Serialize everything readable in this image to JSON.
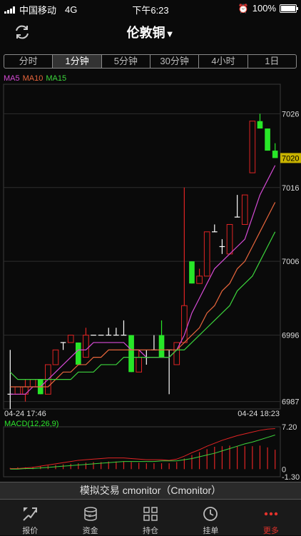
{
  "status_bar": {
    "carrier": "中国移动",
    "network": "4G",
    "time": "下午6:23",
    "battery": "100%"
  },
  "header": {
    "title": "伦敦铜",
    "refresh_icon": "refresh-icon",
    "dropdown_icon": "caret-down-icon"
  },
  "tabs": [
    {
      "label": "分时",
      "active": false
    },
    {
      "label": "1分钟",
      "active": true
    },
    {
      "label": "5分钟",
      "active": false
    },
    {
      "label": "30分钟",
      "active": false
    },
    {
      "label": "4小时",
      "active": false
    },
    {
      "label": "1日",
      "active": false
    }
  ],
  "legend": [
    {
      "label": "MA5",
      "color": "#d64bd6"
    },
    {
      "label": "MA10",
      "color": "#e8663c"
    },
    {
      "label": "MA15",
      "color": "#3cd43c"
    }
  ],
  "chart_data": [
    {
      "type": "candlestick",
      "price_ticks": [
        "7026",
        "7016",
        "7006",
        "6996",
        "6987"
      ],
      "current_price": "7020",
      "time_labels": [
        "04-24 17:46",
        "04-24 18:23"
      ],
      "ylim": [
        6986,
        7030
      ],
      "candles": [
        {
          "o": 6988,
          "c": 6988,
          "h": 6994,
          "l": 6986,
          "color": "white"
        },
        {
          "o": 6989,
          "c": 6988,
          "h": 6989,
          "l": 6988,
          "color": "red"
        },
        {
          "o": 6989,
          "c": 6988,
          "h": 6990,
          "l": 6987,
          "color": "red"
        },
        {
          "o": 6990,
          "c": 6989,
          "h": 6990,
          "l": 6989,
          "color": "red"
        },
        {
          "o": 6988,
          "c": 6990,
          "h": 6990,
          "l": 6988,
          "color": "green"
        },
        {
          "o": 6992,
          "c": 6988,
          "h": 6992,
          "l": 6988,
          "color": "red"
        },
        {
          "o": 6994,
          "c": 6992,
          "h": 6994,
          "l": 6992,
          "color": "red"
        },
        {
          "o": 6995,
          "c": 6994,
          "h": 6995,
          "l": 6994,
          "color": "white"
        },
        {
          "o": 6996,
          "c": 6995,
          "h": 6996,
          "l": 6995,
          "color": "red"
        },
        {
          "o": 6995,
          "c": 6992,
          "h": 6995,
          "l": 6992,
          "color": "green"
        },
        {
          "o": 6996,
          "c": 6993,
          "h": 6997,
          "l": 6993,
          "color": "red"
        },
        {
          "o": 6996,
          "c": 6996,
          "h": 6996,
          "l": 6996,
          "color": "white"
        },
        {
          "o": 6996,
          "c": 6996,
          "h": 6996,
          "l": 6996,
          "color": "white"
        },
        {
          "o": 6996,
          "c": 6996,
          "h": 6997,
          "l": 6996,
          "color": "white"
        },
        {
          "o": 6996,
          "c": 6996,
          "h": 6997,
          "l": 6996,
          "color": "white"
        },
        {
          "o": 6996,
          "c": 6996,
          "h": 6998,
          "l": 6996,
          "color": "white"
        },
        {
          "o": 6996,
          "c": 6991,
          "h": 6996,
          "l": 6991,
          "color": "green"
        },
        {
          "o": 6993,
          "c": 6991,
          "h": 6994,
          "l": 6991,
          "color": "red"
        },
        {
          "o": 6993,
          "c": 6993,
          "h": 6994,
          "l": 6992,
          "color": "white"
        },
        {
          "o": 6994,
          "c": 6994,
          "h": 6996,
          "l": 6994,
          "color": "white"
        },
        {
          "o": 6996,
          "c": 6993,
          "h": 6998,
          "l": 6993,
          "color": "green"
        },
        {
          "o": 6994,
          "c": 6994,
          "h": 6994,
          "l": 6988,
          "color": "white"
        },
        {
          "o": 6995,
          "c": 6992,
          "h": 6995,
          "l": 6992,
          "color": "red"
        },
        {
          "o": 7000,
          "c": 6995,
          "h": 7016,
          "l": 6995,
          "color": "red"
        },
        {
          "o": 7006,
          "c": 7003,
          "h": 7006,
          "l": 7003,
          "color": "green"
        },
        {
          "o": 7004,
          "c": 7003,
          "h": 7005,
          "l": 7003,
          "color": "red"
        },
        {
          "o": 7010,
          "c": 7004,
          "h": 7010,
          "l": 7004,
          "color": "red"
        },
        {
          "o": 7010,
          "c": 7010,
          "h": 7011,
          "l": 7010,
          "color": "white"
        },
        {
          "o": 7008,
          "c": 7008,
          "h": 7009,
          "l": 7007,
          "color": "white"
        },
        {
          "o": 7011,
          "c": 7007,
          "h": 7011,
          "l": 7007,
          "color": "red"
        },
        {
          "o": 7012,
          "c": 7012,
          "h": 7015,
          "l": 7012,
          "color": "white"
        },
        {
          "o": 7015,
          "c": 7011,
          "h": 7015,
          "l": 7011,
          "color": "red"
        },
        {
          "o": 7025,
          "c": 7018,
          "h": 7025,
          "l": 7018,
          "color": "red"
        },
        {
          "o": 7025,
          "c": 7024,
          "h": 7026,
          "l": 7024,
          "color": "green"
        },
        {
          "o": 7024,
          "c": 7021,
          "h": 7024,
          "l": 7021,
          "color": "green"
        },
        {
          "o": 7021,
          "c": 7020,
          "h": 7022,
          "l": 7020,
          "color": "green"
        }
      ],
      "ma5": [
        6988,
        6988,
        6988,
        6989,
        6989,
        6990,
        6991,
        6992,
        6993,
        6994,
        6994,
        6995,
        6995,
        6995,
        6995,
        6995,
        6994,
        6994,
        6993,
        6993,
        6993,
        6993,
        6994,
        6996,
        6999,
        7001,
        7003,
        7005,
        7006,
        7007,
        7008,
        7009,
        7012,
        7015,
        7017,
        7019
      ],
      "ma10": [
        6989,
        6989,
        6989,
        6989,
        6989,
        6989,
        6990,
        6991,
        6991,
        6992,
        6992,
        6993,
        6993,
        6994,
        6994,
        6994,
        6994,
        6994,
        6994,
        6994,
        6994,
        6994,
        6994,
        6995,
        6996,
        6997,
        6999,
        7000,
        7002,
        7003,
        7005,
        7006,
        7008,
        7010,
        7012,
        7014
      ],
      "ma15": [
        6991,
        6990,
        6990,
        6990,
        6990,
        6990,
        6990,
        6990,
        6990,
        6991,
        6991,
        6991,
        6992,
        6992,
        6992,
        6993,
        6993,
        6993,
        6993,
        6993,
        6993,
        6993,
        6994,
        6994,
        6995,
        6996,
        6997,
        6998,
        6999,
        7000,
        7002,
        7003,
        7004,
        7006,
        7008,
        7010
      ]
    },
    {
      "type": "bar",
      "title": "MACD(12,26,9)",
      "y_ticks": [
        "7.20",
        "0",
        "-1.30"
      ],
      "ylim": [
        -1.3,
        7.2
      ],
      "histogram": [
        0.2,
        0.3,
        0.3,
        0.4,
        0.5,
        0.6,
        0.7,
        0.8,
        0.9,
        1.0,
        1.1,
        1.2,
        1.2,
        1.3,
        1.3,
        1.3,
        1.2,
        1.1,
        1.0,
        1.0,
        1.0,
        1.0,
        1.2,
        1.8,
        2.4,
        2.9,
        3.4,
        3.8,
        3.9,
        4.0,
        3.9,
        3.9,
        3.9,
        4.0,
        3.7,
        3.3
      ],
      "dif": [
        0.1,
        0.1,
        0.2,
        0.3,
        0.5,
        0.7,
        0.9,
        1.1,
        1.3,
        1.5,
        1.6,
        1.7,
        1.8,
        1.9,
        1.9,
        1.9,
        1.8,
        1.7,
        1.6,
        1.6,
        1.6,
        1.5,
        1.7,
        2.2,
        2.8,
        3.3,
        3.9,
        4.4,
        4.9,
        5.3,
        5.7,
        6.0,
        6.3,
        6.6,
        6.8,
        6.9
      ],
      "dea": [
        0.0,
        0.0,
        0.1,
        0.1,
        0.2,
        0.3,
        0.4,
        0.5,
        0.6,
        0.7,
        0.8,
        0.9,
        1.0,
        1.1,
        1.2,
        1.3,
        1.3,
        1.3,
        1.3,
        1.3,
        1.4,
        1.4,
        1.4,
        1.6,
        1.8,
        2.1,
        2.4,
        2.7,
        3.1,
        3.5,
        3.9,
        4.3,
        4.6,
        5.0,
        5.4,
        5.8
      ]
    }
  ],
  "banner": "模拟交易  cmonitor（Cmonitor）",
  "tabbar": [
    {
      "label": "报价",
      "icon": "quote-icon",
      "active": false
    },
    {
      "label": "资金",
      "icon": "fund-icon",
      "active": false
    },
    {
      "label": "持仓",
      "icon": "position-icon",
      "active": false
    },
    {
      "label": "挂单",
      "icon": "clock-icon",
      "active": false
    },
    {
      "label": "更多",
      "icon": "more-icon",
      "active": true
    }
  ],
  "colors": {
    "up": "#e02424",
    "down": "#28e628",
    "accent": "#e5322c",
    "price_tag": "#c9b300"
  }
}
